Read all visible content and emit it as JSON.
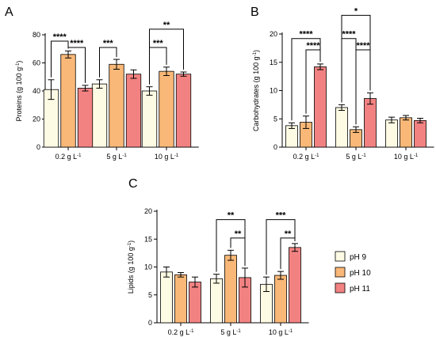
{
  "chart_data": [
    {
      "panel": "A",
      "type": "bar",
      "ylabel": "Proteins (g 100 g",
      "ylabel_sup": "-1",
      "ylim": [
        0,
        80
      ],
      "yticks": [
        "0",
        "20",
        "40",
        "60",
        "80"
      ],
      "categories": [
        {
          "main": "0.2 g L",
          "sup": "-1"
        },
        {
          "main": "5 g L",
          "sup": "-1"
        },
        {
          "main": "10 g L",
          "sup": "-1"
        }
      ],
      "series": [
        {
          "name": "pH 9",
          "values": [
            41,
            45,
            40
          ],
          "errors": [
            7,
            3,
            3
          ]
        },
        {
          "name": "pH 10",
          "values": [
            66,
            59,
            54
          ],
          "errors": [
            2.5,
            3.5,
            3
          ]
        },
        {
          "name": "pH 11",
          "values": [
            42,
            52,
            52
          ],
          "errors": [
            2,
            3,
            1.5
          ]
        }
      ],
      "significance": [
        {
          "group": 0,
          "from": 0,
          "to": 1,
          "label": "****",
          "y": 75.5
        },
        {
          "group": 0,
          "from": 1,
          "to": 2,
          "label": "****",
          "y": 71
        },
        {
          "group": 1,
          "from": 0,
          "to": 1,
          "label": "***",
          "y": 71
        },
        {
          "group": 2,
          "from": 0,
          "to": 2,
          "label": "**",
          "y": 84
        },
        {
          "group": 2,
          "from": 0,
          "to": 1,
          "label": "***",
          "y": 71
        }
      ]
    },
    {
      "panel": "B",
      "type": "bar",
      "ylabel": "Carbohydrates (g 100 g",
      "ylabel_sup": "-1",
      "ylim": [
        0,
        20
      ],
      "yticks": [
        "0",
        "5",
        "10",
        "15",
        "20"
      ],
      "categories": [
        {
          "main": "0.2 g L",
          "sup": "-1"
        },
        {
          "main": "5 g L",
          "sup": "-1"
        },
        {
          "main": "10 g L",
          "sup": "-1"
        }
      ],
      "series": [
        {
          "name": "pH 9",
          "values": [
            3.8,
            7.0,
            4.8
          ],
          "errors": [
            0.5,
            0.5,
            0.5
          ]
        },
        {
          "name": "pH 10",
          "values": [
            4.4,
            3.1,
            5.2
          ],
          "errors": [
            1.1,
            0.5,
            0.4
          ]
        },
        {
          "name": "pH 11",
          "values": [
            14.2,
            8.6,
            4.7
          ],
          "errors": [
            0.5,
            1.0,
            0.4
          ]
        }
      ],
      "significance": [
        {
          "group": 0,
          "from": 0,
          "to": 2,
          "label": "****",
          "y": 19.2
        },
        {
          "group": 0,
          "from": 1,
          "to": 2,
          "label": "****",
          "y": 17.2
        },
        {
          "group": 1,
          "from": 0,
          "to": 2,
          "label": "*",
          "y": 23.3
        },
        {
          "group": 1,
          "from": 0,
          "to": 1,
          "label": "****",
          "y": 19.2
        },
        {
          "group": 1,
          "from": 1,
          "to": 2,
          "label": "****",
          "y": 17.2
        }
      ]
    },
    {
      "panel": "C",
      "type": "bar",
      "ylabel": "Lipids (g 100 g",
      "ylabel_sup": "-1",
      "ylim": [
        0,
        20
      ],
      "yticks": [
        "0",
        "5",
        "10",
        "15",
        "20"
      ],
      "categories": [
        {
          "main": "0.2 g L",
          "sup": "-1"
        },
        {
          "main": "5 g L",
          "sup": "-1"
        },
        {
          "main": "10 g L",
          "sup": "-1"
        }
      ],
      "series": [
        {
          "name": "pH 9",
          "values": [
            9.1,
            7.9,
            6.9
          ],
          "errors": [
            0.9,
            0.8,
            1.3
          ]
        },
        {
          "name": "pH 10",
          "values": [
            8.6,
            12.1,
            8.5
          ],
          "errors": [
            0.4,
            0.9,
            0.7
          ]
        },
        {
          "name": "pH 11",
          "values": [
            7.3,
            8.1,
            13.5
          ],
          "errors": [
            0.9,
            1.7,
            0.7
          ]
        }
      ],
      "significance": [
        {
          "group": 1,
          "from": 0,
          "to": 2,
          "label": "**",
          "y": 18.5
        },
        {
          "group": 1,
          "from": 1,
          "to": 2,
          "label": "**",
          "y": 15.2
        },
        {
          "group": 2,
          "from": 0,
          "to": 2,
          "label": "***",
          "y": 18.5
        },
        {
          "group": 2,
          "from": 1,
          "to": 2,
          "label": "**",
          "y": 15.2
        }
      ]
    }
  ],
  "legend": {
    "position": "right",
    "items": [
      {
        "label": "pH 9",
        "color": "#fefbe4"
      },
      {
        "label": "pH 10",
        "color": "#f9b877"
      },
      {
        "label": "pH 11",
        "color": "#f28282"
      }
    ]
  },
  "colors": {
    "pH 9": "#fefbe4",
    "pH 10": "#f9b877",
    "pH 11": "#f28282",
    "axis": "#000000"
  }
}
